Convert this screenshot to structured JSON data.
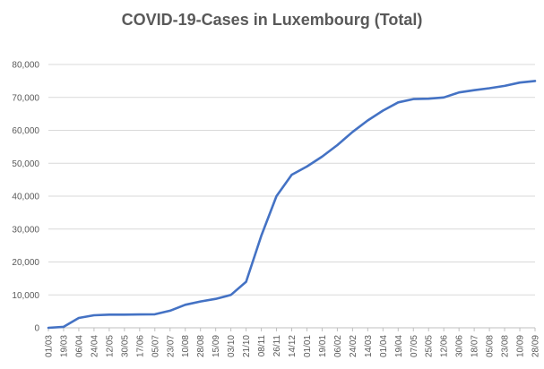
{
  "chart_data": {
    "type": "line",
    "title": "COVID-19-Cases in Luxembourg (Total)",
    "xlabel": "",
    "ylabel": "",
    "ylim": [
      0,
      80000
    ],
    "yticks": [
      0,
      10000,
      20000,
      30000,
      40000,
      50000,
      60000,
      70000,
      80000
    ],
    "ytick_labels": [
      "0",
      "10,000",
      "20,000",
      "30,000",
      "40,000",
      "50,000",
      "60,000",
      "70,000",
      "80,000"
    ],
    "grid": true,
    "legend": "none",
    "categories": [
      "01/03",
      "19/03",
      "06/04",
      "24/04",
      "12/05",
      "30/05",
      "17/06",
      "05/07",
      "23/07",
      "10/08",
      "28/08",
      "15/09",
      "03/10",
      "21/10",
      "08/11",
      "26/11",
      "14/12",
      "01/01",
      "19/01",
      "06/02",
      "24/02",
      "14/03",
      "01/04",
      "19/04",
      "07/05",
      "25/05",
      "12/06",
      "30/06",
      "18/07",
      "05/08",
      "23/08",
      "10/09",
      "28/09"
    ],
    "series": [
      {
        "color": "#4472C4",
        "values": [
          0,
          300,
          3000,
          3800,
          4000,
          4000,
          4050,
          4100,
          5200,
          7000,
          8000,
          8800,
          10000,
          14000,
          28000,
          40000,
          46500,
          49000,
          52000,
          55500,
          59500,
          63000,
          66000,
          68500,
          69500,
          69600,
          70000,
          71500,
          72200,
          72800,
          73500,
          74500,
          75000
        ]
      }
    ]
  }
}
